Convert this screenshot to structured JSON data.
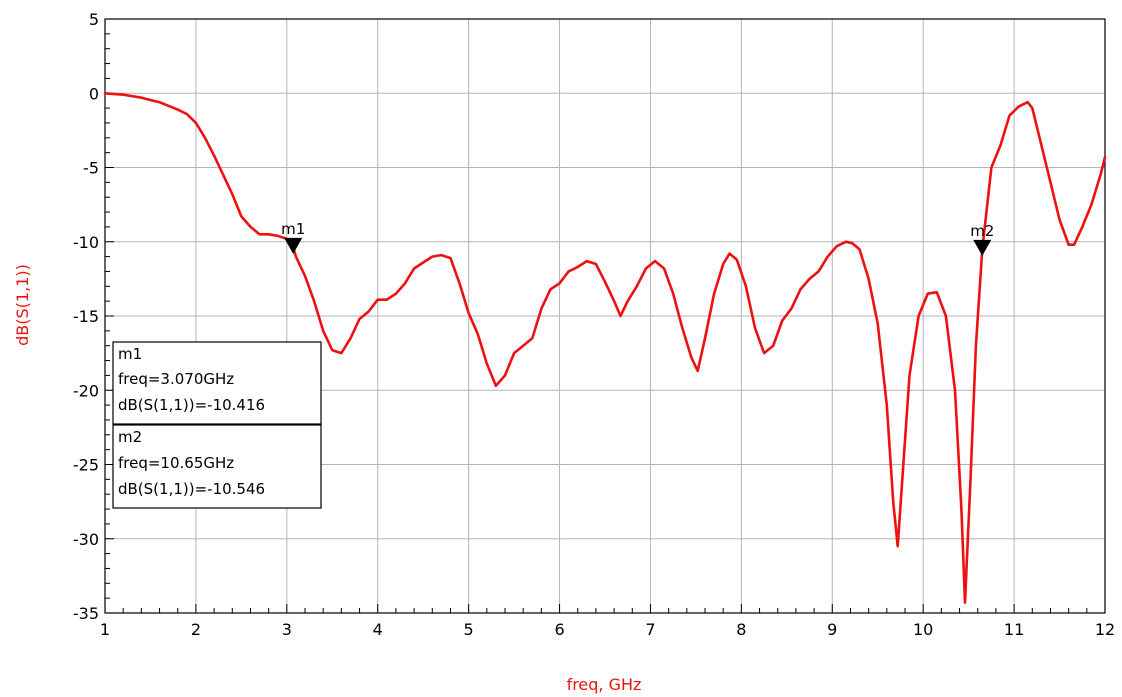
{
  "chart_data": {
    "type": "line",
    "xlabel": "freq, GHz",
    "ylabel": "dB(S(1,1))",
    "xlim": [
      1,
      12
    ],
    "ylim": [
      -35,
      5
    ],
    "x_ticks": [
      1,
      2,
      3,
      4,
      5,
      6,
      7,
      8,
      9,
      10,
      11,
      12
    ],
    "y_ticks": [
      5,
      0,
      -5,
      -10,
      -15,
      -20,
      -25,
      -30,
      -35
    ],
    "grid": true,
    "colors": {
      "series": "#ee1111",
      "axis_label": "#ee1111",
      "grid": "#b4b4b4",
      "frame": "#000000",
      "marker": "#000000"
    },
    "series": [
      {
        "x": [
          1.0,
          1.2,
          1.4,
          1.6,
          1.8,
          1.9,
          2.0,
          2.1,
          2.2,
          2.3,
          2.4,
          2.5,
          2.6,
          2.7,
          2.8,
          2.9,
          3.0,
          3.07,
          3.1,
          3.2,
          3.3,
          3.4,
          3.5,
          3.6,
          3.7,
          3.8,
          3.9,
          4.0,
          4.1,
          4.2,
          4.3,
          4.4,
          4.5,
          4.6,
          4.7,
          4.8,
          4.9,
          5.0,
          5.1,
          5.2,
          5.3,
          5.4,
          5.5,
          5.6,
          5.7,
          5.8,
          5.9,
          6.0,
          6.1,
          6.2,
          6.3,
          6.4,
          6.5,
          6.6,
          6.67,
          6.75,
          6.85,
          6.95,
          7.05,
          7.15,
          7.25,
          7.35,
          7.45,
          7.52,
          7.6,
          7.7,
          7.8,
          7.87,
          7.95,
          8.05,
          8.15,
          8.25,
          8.35,
          8.45,
          8.55,
          8.65,
          8.75,
          8.85,
          8.95,
          9.05,
          9.15,
          9.22,
          9.3,
          9.4,
          9.5,
          9.6,
          9.67,
          9.72,
          9.77,
          9.85,
          9.95,
          10.05,
          10.15,
          10.25,
          10.35,
          10.42,
          10.46,
          10.52,
          10.58,
          10.65,
          10.75,
          10.85,
          10.95,
          11.05,
          11.15,
          11.2,
          11.3,
          11.4,
          11.5,
          11.6,
          11.66,
          11.75,
          11.85,
          11.95,
          12.0
        ],
        "values": [
          0.0,
          -0.1,
          -0.3,
          -0.6,
          -1.1,
          -1.4,
          -2.0,
          -3.0,
          -4.2,
          -5.5,
          -6.8,
          -8.3,
          -9.0,
          -9.5,
          -9.5,
          -9.6,
          -9.8,
          -10.4,
          -11.0,
          -12.3,
          -14.0,
          -16.0,
          -17.3,
          -17.5,
          -16.5,
          -15.2,
          -14.7,
          -13.9,
          -13.9,
          -13.5,
          -12.8,
          -11.8,
          -11.4,
          -11.0,
          -10.9,
          -11.1,
          -12.8,
          -14.8,
          -16.2,
          -18.2,
          -19.7,
          -19.0,
          -17.5,
          -17.0,
          -16.5,
          -14.5,
          -13.2,
          -12.8,
          -12.0,
          -11.7,
          -11.3,
          -11.5,
          -12.7,
          -14.0,
          -15.0,
          -14.0,
          -13.0,
          -11.8,
          -11.3,
          -11.8,
          -13.5,
          -15.8,
          -17.8,
          -18.7,
          -16.5,
          -13.5,
          -11.5,
          -10.8,
          -11.2,
          -13.0,
          -15.8,
          -17.5,
          -17.0,
          -15.3,
          -14.5,
          -13.2,
          -12.5,
          -12.0,
          -11.0,
          -10.3,
          -10.0,
          -10.1,
          -10.5,
          -12.5,
          -15.5,
          -21.0,
          -27.5,
          -30.5,
          -26.0,
          -19.0,
          -15.0,
          -13.5,
          -13.4,
          -15.0,
          -20.0,
          -28.0,
          -34.3,
          -26.0,
          -17.0,
          -10.5,
          -5.0,
          -3.5,
          -1.5,
          -0.9,
          -0.6,
          -1.0,
          -3.5,
          -6.0,
          -8.5,
          -10.2,
          -10.2,
          -9.0,
          -7.5,
          -5.5,
          -4.3
        ]
      }
    ],
    "markers": [
      {
        "name": "m1",
        "x": 3.07,
        "y": -10.416,
        "freq_text": "freq=3.070GHz",
        "value_text": "dB(S(1,1))=-10.416"
      },
      {
        "name": "m2",
        "x": 10.65,
        "y": -10.546,
        "freq_text": "freq=10.65GHz",
        "value_text": "dB(S(1,1))=-10.546"
      }
    ]
  }
}
